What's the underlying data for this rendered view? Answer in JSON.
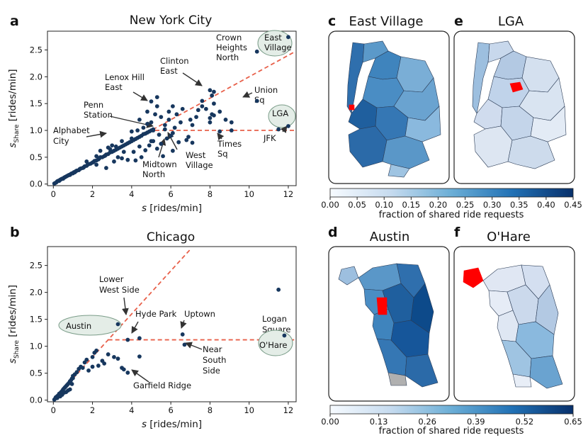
{
  "panels": {
    "a": {
      "letter": "a",
      "title": "New York City"
    },
    "b": {
      "letter": "b",
      "title": "Chicago"
    },
    "c": {
      "letter": "c",
      "title": "East Village"
    },
    "e": {
      "letter": "e",
      "title": "LGA"
    },
    "d": {
      "letter": "d",
      "title": "Austin"
    },
    "f": {
      "letter": "f",
      "title": "O'Hare"
    }
  },
  "colorbars": {
    "top": {
      "ticks": [
        "0.00",
        "0.05",
        "0.10",
        "0.15",
        "0.20",
        "0.25",
        "0.30",
        "0.35",
        "0.40",
        "0.45"
      ],
      "label": "fraction of shared ride requests"
    },
    "bottom": {
      "ticks": [
        "0.00",
        "0.13",
        "0.26",
        "0.39",
        "0.52",
        "0.65"
      ],
      "label": "fraction of shared ride requests"
    }
  },
  "colors": {
    "point": "#17375e",
    "fit_line": "#e8604a",
    "highlight_fill": "#e4ede7",
    "highlight_stroke": "#7a9c88",
    "map_selected": "#ff0000"
  },
  "chart_data": [
    {
      "id": "nyc",
      "type": "scatter",
      "title": "New York City",
      "xlabel": "s [rides/min]",
      "ylabel": "s_Share [rides/min]",
      "ylabel_main": "s",
      "ylabel_sub": "Share",
      "ylabel_rest": " [rides/min]",
      "xlim": [
        -0.3,
        12.4
      ],
      "ylim": [
        -0.03,
        2.85
      ],
      "xticks": [
        0,
        2,
        4,
        6,
        8,
        10,
        12
      ],
      "yticks": [
        0.0,
        0.5,
        1.0,
        1.5,
        2.0,
        2.5
      ],
      "fit_line": {
        "slope": 0.2,
        "x_end": 12.3,
        "plateau_start": 5.2,
        "plateau_y": 1.0
      },
      "points": [
        [
          0.05,
          0.01
        ],
        [
          0.1,
          0.02
        ],
        [
          0.15,
          0.03
        ],
        [
          0.2,
          0.05
        ],
        [
          0.25,
          0.06
        ],
        [
          0.3,
          0.06
        ],
        [
          0.35,
          0.08
        ],
        [
          0.4,
          0.09
        ],
        [
          0.45,
          0.1
        ],
        [
          0.5,
          0.1
        ],
        [
          0.55,
          0.12
        ],
        [
          0.6,
          0.13
        ],
        [
          0.65,
          0.14
        ],
        [
          0.7,
          0.15
        ],
        [
          0.75,
          0.16
        ],
        [
          0.8,
          0.17
        ],
        [
          0.85,
          0.17
        ],
        [
          0.9,
          0.19
        ],
        [
          0.95,
          0.2
        ],
        [
          1.0,
          0.2
        ],
        [
          1.05,
          0.22
        ],
        [
          1.1,
          0.22
        ],
        [
          1.15,
          0.24
        ],
        [
          1.2,
          0.25
        ],
        [
          1.3,
          0.26
        ],
        [
          1.35,
          0.28
        ],
        [
          1.4,
          0.29
        ],
        [
          1.5,
          0.3
        ],
        [
          1.55,
          0.31
        ],
        [
          1.6,
          0.33
        ],
        [
          1.7,
          0.34
        ],
        [
          1.75,
          0.36
        ],
        [
          1.8,
          0.37
        ],
        [
          1.9,
          0.38
        ],
        [
          2.0,
          0.4
        ],
        [
          2.05,
          0.41
        ],
        [
          2.1,
          0.43
        ],
        [
          2.2,
          0.44
        ],
        [
          2.3,
          0.46
        ],
        [
          2.35,
          0.48
        ],
        [
          2.4,
          0.5
        ],
        [
          2.5,
          0.5
        ],
        [
          2.6,
          0.52
        ],
        [
          2.65,
          0.53
        ],
        [
          2.7,
          0.55
        ],
        [
          2.8,
          0.56
        ],
        [
          2.9,
          0.59
        ],
        [
          3.0,
          0.6
        ],
        [
          3.1,
          0.62
        ],
        [
          3.2,
          0.64
        ],
        [
          3.3,
          0.66
        ],
        [
          3.4,
          0.68
        ],
        [
          3.5,
          0.7
        ],
        [
          3.6,
          0.72
        ],
        [
          3.7,
          0.74
        ],
        [
          3.8,
          0.76
        ],
        [
          3.9,
          0.78
        ],
        [
          4.0,
          0.8
        ],
        [
          4.1,
          0.82
        ],
        [
          4.2,
          0.84
        ],
        [
          4.3,
          0.86
        ],
        [
          4.4,
          0.88
        ],
        [
          4.5,
          0.9
        ],
        [
          4.6,
          0.93
        ],
        [
          4.7,
          0.94
        ],
        [
          4.8,
          0.96
        ],
        [
          4.9,
          0.98
        ],
        [
          5.0,
          1.0
        ],
        [
          5.1,
          1.02
        ],
        [
          1.7,
          0.42
        ],
        [
          2.2,
          0.52
        ],
        [
          2.8,
          0.68
        ],
        [
          3.0,
          0.72
        ],
        [
          3.3,
          0.5
        ],
        [
          3.6,
          0.6
        ],
        [
          3.8,
          0.45
        ],
        [
          4.1,
          0.6
        ],
        [
          4.4,
          0.7
        ],
        [
          4.5,
          0.5
        ],
        [
          4.7,
          0.63
        ],
        [
          4.9,
          0.72
        ],
        [
          5.1,
          0.8
        ],
        [
          5.3,
          0.66
        ],
        [
          5.5,
          0.75
        ],
        [
          5.8,
          0.85
        ],
        [
          6.0,
          0.9
        ],
        [
          6.1,
          0.62
        ],
        [
          6.4,
          0.78
        ],
        [
          6.9,
          0.88
        ],
        [
          7.1,
          0.77
        ],
        [
          5.6,
          0.52
        ],
        [
          4.2,
          0.44
        ],
        [
          3.5,
          0.48
        ],
        [
          2.4,
          0.62
        ],
        [
          2.2,
          0.36
        ],
        [
          2.7,
          0.3
        ],
        [
          3.1,
          0.42
        ],
        [
          2.9,
          0.65
        ],
        [
          3.5,
          0.8
        ],
        [
          4.0,
          0.98
        ],
        [
          4.3,
          1.0
        ],
        [
          4.6,
          1.05
        ],
        [
          5.0,
          1.15
        ],
        [
          5.2,
          1.3
        ],
        [
          5.3,
          1.45
        ],
        [
          5.5,
          1.25
        ],
        [
          5.7,
          1.1
        ],
        [
          5.9,
          1.35
        ],
        [
          6.1,
          1.45
        ],
        [
          6.3,
          1.3
        ],
        [
          6.6,
          1.4
        ],
        [
          7.0,
          1.2
        ],
        [
          7.1,
          1.1
        ],
        [
          7.3,
          1.25
        ],
        [
          7.6,
          1.55
        ],
        [
          7.8,
          1.4
        ],
        [
          8.0,
          1.75
        ],
        [
          8.1,
          1.65
        ],
        [
          8.2,
          1.72
        ],
        [
          8.2,
          1.5
        ],
        [
          8.1,
          1.3
        ],
        [
          8.2,
          1.28
        ],
        [
          8.0,
          1.15
        ],
        [
          8.5,
          1.35
        ],
        [
          8.8,
          1.2
        ],
        [
          9.1,
          1.15
        ],
        [
          4.8,
          1.12
        ],
        [
          5.1,
          1.0
        ],
        [
          6.1,
          0.95
        ],
        [
          6.5,
          1.15
        ],
        [
          6.8,
          0.82
        ],
        [
          5.4,
          0.92
        ],
        [
          5.7,
          1.02
        ],
        [
          4.0,
          0.85
        ],
        [
          3.2,
          0.7
        ],
        [
          5.0,
          0.8
        ],
        [
          6.2,
          1.05
        ],
        [
          7.4,
          1.38
        ],
        [
          8.0,
          1.23
        ],
        [
          7.6,
          1.45
        ],
        [
          5.3,
          1.62
        ],
        [
          4.8,
          1.35
        ],
        [
          4.4,
          1.2
        ],
        [
          5.9,
          1.2
        ],
        [
          10.4,
          2.47
        ],
        [
          12.0,
          2.74
        ],
        [
          10.4,
          1.55
        ],
        [
          12.0,
          1.08
        ],
        [
          11.5,
          1.02
        ],
        [
          9.1,
          1.0
        ],
        [
          8.5,
          0.98
        ],
        [
          5.0,
          1.54
        ]
      ],
      "annotations": [
        {
          "text": [
            "Crown",
            "Heights",
            "North"
          ]
        },
        {
          "text": [
            "East",
            "Village"
          ],
          "highlight": true
        },
        {
          "text": [
            "Clinton",
            "East"
          ]
        },
        {
          "text": [
            "Lenox Hill",
            "East"
          ]
        },
        {
          "text": [
            "Union",
            "Sq"
          ]
        },
        {
          "text": [
            "Penn",
            "Station"
          ]
        },
        {
          "text": [
            "LGA"
          ],
          "highlight": true
        },
        {
          "text": [
            "Alphabet",
            "City"
          ]
        },
        {
          "text": [
            "JFK"
          ]
        },
        {
          "text": [
            "Times",
            "Sq"
          ]
        },
        {
          "text": [
            "West",
            "Village"
          ]
        },
        {
          "text": [
            "Midtown",
            "North"
          ]
        }
      ]
    },
    {
      "id": "chicago",
      "type": "scatter",
      "title": "Chicago",
      "xlabel": "s [rides/min]",
      "ylabel": "s_Share [rides/min]",
      "ylabel_main": "s",
      "ylabel_sub": "Share",
      "ylabel_rest": " [rides/min]",
      "xlim": [
        -0.3,
        12.4
      ],
      "ylim": [
        -0.03,
        2.85
      ],
      "xticks": [
        0,
        2,
        4,
        6,
        8,
        10,
        12
      ],
      "yticks": [
        0.0,
        0.5,
        1.0,
        1.5,
        2.0,
        2.5
      ],
      "fit_line": {
        "slope": 0.4,
        "x_end": 7.0,
        "plateau_start": 2.8,
        "plateau_y": 1.12
      },
      "points": [
        [
          0.05,
          0.01
        ],
        [
          0.1,
          0.03
        ],
        [
          0.12,
          0.05
        ],
        [
          0.15,
          0.06
        ],
        [
          0.2,
          0.07
        ],
        [
          0.22,
          0.08
        ],
        [
          0.25,
          0.09
        ],
        [
          0.3,
          0.1
        ],
        [
          0.3,
          0.12
        ],
        [
          0.35,
          0.13
        ],
        [
          0.4,
          0.15
        ],
        [
          0.45,
          0.17
        ],
        [
          0.5,
          0.2
        ],
        [
          0.55,
          0.22
        ],
        [
          0.6,
          0.24
        ],
        [
          0.65,
          0.26
        ],
        [
          0.7,
          0.28
        ],
        [
          0.75,
          0.3
        ],
        [
          0.8,
          0.32
        ],
        [
          0.85,
          0.35
        ],
        [
          0.9,
          0.37
        ],
        [
          0.95,
          0.4
        ],
        [
          1.0,
          0.41
        ],
        [
          0.2,
          0.04
        ],
        [
          0.35,
          0.07
        ],
        [
          0.45,
          0.1
        ],
        [
          0.55,
          0.14
        ],
        [
          0.65,
          0.15
        ],
        [
          0.85,
          0.2
        ],
        [
          0.75,
          0.18
        ],
        [
          0.95,
          0.3
        ],
        [
          1.2,
          0.52
        ],
        [
          1.3,
          0.58
        ],
        [
          1.4,
          0.62
        ],
        [
          1.5,
          0.6
        ],
        [
          1.6,
          0.7
        ],
        [
          1.7,
          0.75
        ],
        [
          1.8,
          0.55
        ],
        [
          2.0,
          0.8
        ],
        [
          2.1,
          0.88
        ],
        [
          2.2,
          0.92
        ],
        [
          2.0,
          0.62
        ],
        [
          2.3,
          0.64
        ],
        [
          2.6,
          0.68
        ],
        [
          2.5,
          0.73
        ],
        [
          2.8,
          0.85
        ],
        [
          3.1,
          0.8
        ],
        [
          3.3,
          0.77
        ],
        [
          3.5,
          0.6
        ],
        [
          3.6,
          0.57
        ],
        [
          3.8,
          0.51
        ],
        [
          1.0,
          0.45
        ],
        [
          1.1,
          0.48
        ],
        [
          3.3,
          1.41
        ],
        [
          3.8,
          1.12
        ],
        [
          4.4,
          1.15
        ],
        [
          6.6,
          1.22
        ],
        [
          6.7,
          1.03
        ],
        [
          4.4,
          0.81
        ],
        [
          11.5,
          2.05
        ],
        [
          11.8,
          1.2
        ]
      ],
      "annotations": [
        {
          "text": [
            "Lower",
            "West Side"
          ]
        },
        {
          "text": [
            "Austin"
          ],
          "highlight": true
        },
        {
          "text": [
            "Hyde Park"
          ]
        },
        {
          "text": [
            "Uptown"
          ]
        },
        {
          "text": [
            "Logan",
            "Square"
          ]
        },
        {
          "text": [
            "O'Hare"
          ],
          "highlight": true
        },
        {
          "text": [
            "Near",
            "South",
            "Side"
          ]
        },
        {
          "text": [
            "Garfield Ridge"
          ]
        }
      ]
    }
  ]
}
